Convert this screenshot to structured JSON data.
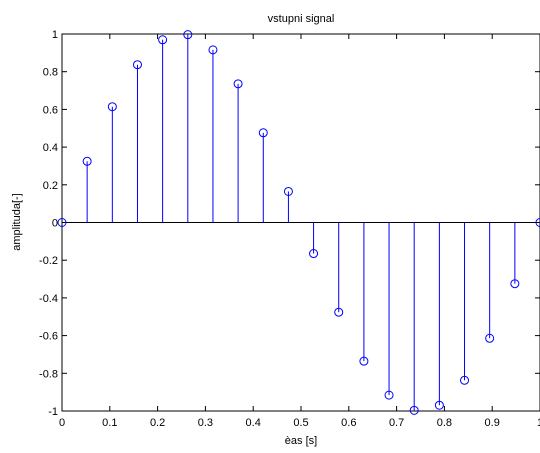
{
  "chart_data": {
    "type": "stem",
    "title": "vstupni signal",
    "xlabel": "èas [s]",
    "ylabel": "amplituda[-]",
    "xlim": [
      0,
      1
    ],
    "ylim": [
      -1,
      1
    ],
    "grid": false,
    "baseline": 0,
    "xticks": [
      0,
      0.1,
      0.2,
      0.3,
      0.4,
      0.5,
      0.6,
      0.7,
      0.8,
      0.9,
      1
    ],
    "xtick_labels": [
      "0",
      "0.1",
      "0.2",
      "0.3",
      "0.4",
      "0.5",
      "0.6",
      "0.7",
      "0.8",
      "0.9",
      "1"
    ],
    "yticks": [
      -1,
      -0.8,
      -0.6,
      -0.4,
      -0.2,
      0,
      0.2,
      0.4,
      0.6,
      0.8,
      1
    ],
    "ytick_labels": [
      "-1",
      "-0.8",
      "-0.6",
      "-0.4",
      "-0.2",
      "0",
      "0.2",
      "0.4",
      "0.6",
      "0.8",
      "1"
    ],
    "series": [
      {
        "color": "#0000ff",
        "marker": "circle-open",
        "x": [
          0,
          0.0526,
          0.1053,
          0.1579,
          0.2105,
          0.2632,
          0.3158,
          0.3684,
          0.4211,
          0.4737,
          0.5263,
          0.5789,
          0.6316,
          0.6842,
          0.7368,
          0.7895,
          0.8421,
          0.8947,
          0.9474,
          1
        ],
        "y": [
          0,
          0.3247,
          0.6142,
          0.8372,
          0.9694,
          0.9966,
          0.9158,
          0.7357,
          0.4759,
          0.1646,
          -0.1646,
          -0.4759,
          -0.7357,
          -0.9158,
          -0.9966,
          -0.9694,
          -0.8372,
          -0.6142,
          -0.3247,
          0
        ]
      }
    ]
  }
}
